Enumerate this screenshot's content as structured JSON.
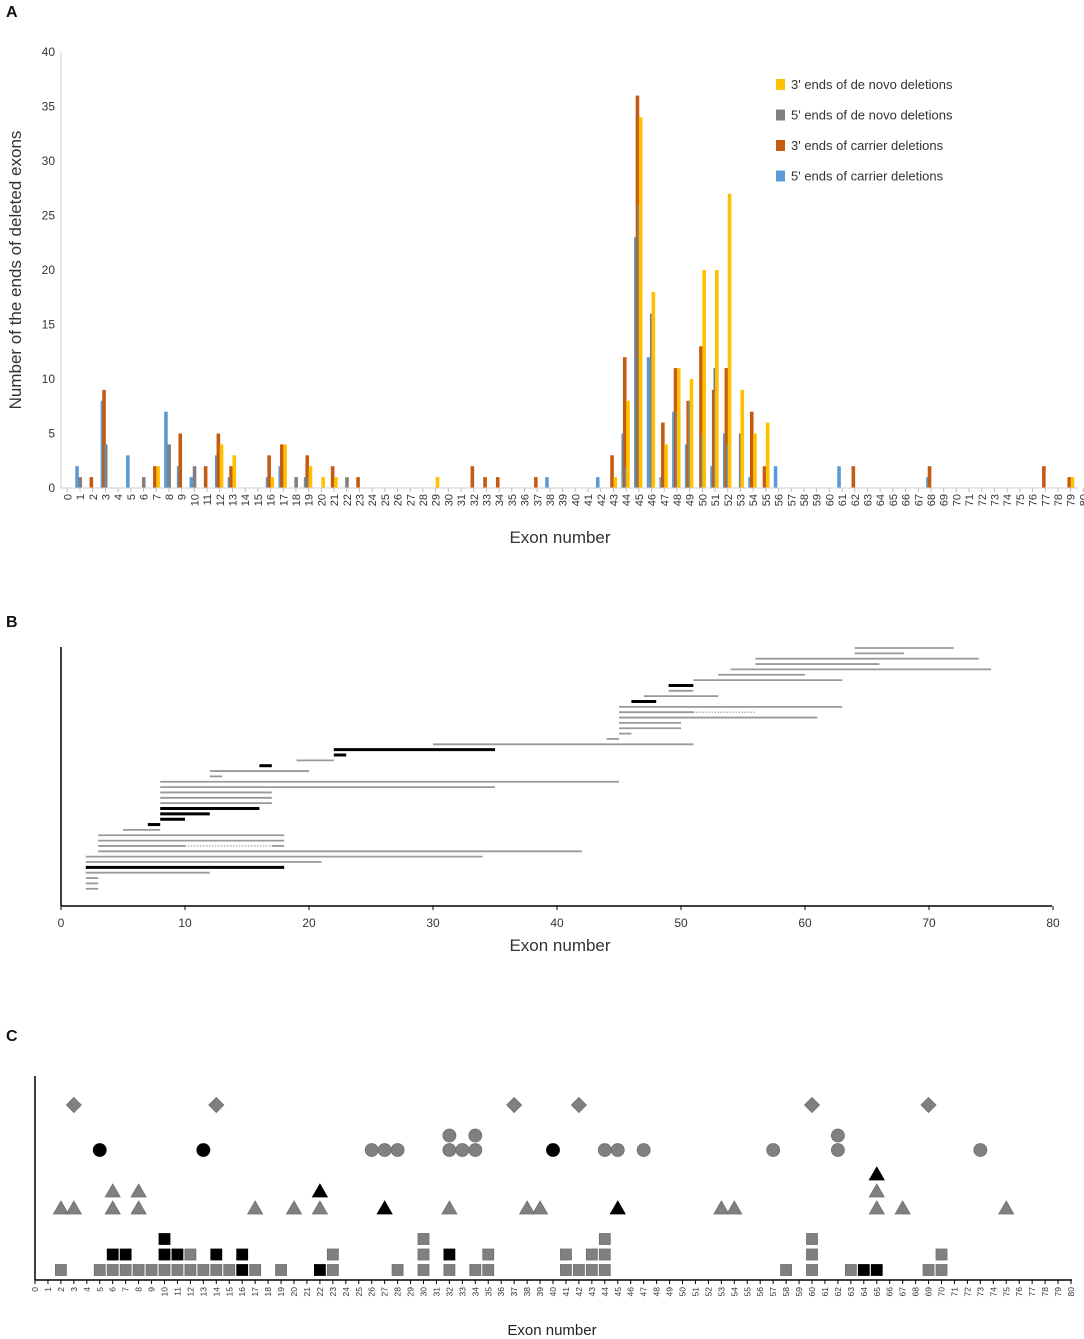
{
  "panel_labels": {
    "a": "A",
    "b": "B",
    "c": "C"
  },
  "colors": {
    "de_novo_3p": "#FFC000",
    "de_novo_5p": "#808080",
    "carrier_3p": "#C55A11",
    "carrier_5p": "#5B9BD5",
    "grey_line": "#999999",
    "black": "#000000",
    "grey_marker": "#808080"
  },
  "chart_data": [
    {
      "id": "A",
      "type": "bar",
      "ylabel": "Number of the ends of deleted exons",
      "xlabel": "Exon number",
      "ylim": [
        0,
        40
      ],
      "yticks": [
        0,
        5,
        10,
        15,
        20,
        25,
        30,
        35,
        40
      ],
      "xlim": [
        0,
        80
      ],
      "legend": [
        {
          "key": "denovo3",
          "name": "3' ends of de novo deletions"
        },
        {
          "key": "denovo5",
          "name": "5' ends of de novo deletions"
        },
        {
          "key": "carrier3",
          "name": "3' ends of carrier deletions"
        },
        {
          "key": "carrier5",
          "name": "5' ends of carrier deletions"
        }
      ],
      "series": [
        {
          "key": "carrier5",
          "name": "5' ends of carrier deletions",
          "points": [
            [
              1,
              2
            ],
            [
              3,
              8
            ],
            [
              5,
              3
            ],
            [
              8,
              7
            ],
            [
              9,
              2
            ],
            [
              10,
              1
            ],
            [
              12,
              3
            ],
            [
              13,
              1
            ],
            [
              16,
              1
            ],
            [
              17,
              2
            ],
            [
              19,
              1
            ],
            [
              38,
              1
            ],
            [
              42,
              1
            ],
            [
              44,
              5
            ],
            [
              45,
              23
            ],
            [
              46,
              12
            ],
            [
              47,
              1
            ],
            [
              48,
              7
            ],
            [
              49,
              4
            ],
            [
              51,
              2
            ],
            [
              52,
              5
            ],
            [
              54,
              1
            ],
            [
              56,
              2
            ],
            [
              61,
              2
            ],
            [
              68,
              1
            ]
          ]
        },
        {
          "key": "carrier3",
          "name": "3' ends of carrier deletions",
          "points": [
            [
              2,
              1
            ],
            [
              3,
              9
            ],
            [
              7,
              2
            ],
            [
              9,
              5
            ],
            [
              11,
              2
            ],
            [
              12,
              5
            ],
            [
              13,
              2
            ],
            [
              16,
              3
            ],
            [
              17,
              4
            ],
            [
              19,
              3
            ],
            [
              21,
              2
            ],
            [
              23,
              1
            ],
            [
              32,
              2
            ],
            [
              33,
              1
            ],
            [
              34,
              1
            ],
            [
              37,
              1
            ],
            [
              43,
              3
            ],
            [
              44,
              12
            ],
            [
              45,
              36
            ],
            [
              47,
              6
            ],
            [
              48,
              11
            ],
            [
              49,
              8
            ],
            [
              50,
              13
            ],
            [
              51,
              9
            ],
            [
              52,
              11
            ],
            [
              54,
              7
            ],
            [
              55,
              2
            ],
            [
              62,
              2
            ],
            [
              68,
              2
            ],
            [
              77,
              2
            ],
            [
              79,
              1
            ]
          ]
        },
        {
          "key": "denovo5",
          "name": "5' ends of de novo deletions",
          "points": [
            [
              1,
              1
            ],
            [
              3,
              4
            ],
            [
              6,
              1
            ],
            [
              8,
              4
            ],
            [
              10,
              2
            ],
            [
              18,
              1
            ],
            [
              19,
              1
            ],
            [
              22,
              1
            ],
            [
              44,
              2
            ],
            [
              45,
              26
            ],
            [
              46,
              16
            ],
            [
              48,
              7
            ],
            [
              49,
              8
            ],
            [
              50,
              5
            ],
            [
              51,
              11
            ],
            [
              52,
              4
            ],
            [
              53,
              5
            ]
          ]
        },
        {
          "key": "denovo3",
          "name": "3' ends of de novo deletions",
          "points": [
            [
              7,
              2
            ],
            [
              12,
              4
            ],
            [
              13,
              3
            ],
            [
              16,
              1
            ],
            [
              17,
              4
            ],
            [
              19,
              2
            ],
            [
              20,
              1
            ],
            [
              21,
              1
            ],
            [
              29,
              1
            ],
            [
              43,
              1
            ],
            [
              44,
              8
            ],
            [
              45,
              34
            ],
            [
              46,
              18
            ],
            [
              47,
              4
            ],
            [
              48,
              11
            ],
            [
              49,
              10
            ],
            [
              50,
              20
            ],
            [
              51,
              20
            ],
            [
              52,
              27
            ],
            [
              53,
              9
            ],
            [
              54,
              5
            ],
            [
              55,
              6
            ],
            [
              79,
              1
            ]
          ]
        }
      ]
    },
    {
      "id": "B",
      "type": "range",
      "xlabel": "Exon number",
      "xlim": [
        0,
        80
      ],
      "xticks": [
        0,
        10,
        20,
        30,
        40,
        50,
        60,
        70,
        80
      ],
      "segments": [
        {
          "s": 64,
          "e": 72,
          "c": "g"
        },
        {
          "s": 64,
          "e": 68,
          "c": "g"
        },
        {
          "s": 56,
          "e": 74,
          "c": "g"
        },
        {
          "s": 56,
          "e": 66,
          "c": "g"
        },
        {
          "s": 54,
          "e": 75,
          "c": "g"
        },
        {
          "s": 53,
          "e": 60,
          "c": "g"
        },
        {
          "s": 51,
          "e": 63,
          "c": "g"
        },
        {
          "s": 49,
          "e": 51,
          "c": "k"
        },
        {
          "s": 49,
          "e": 51,
          "c": "g"
        },
        {
          "s": 47,
          "e": 53,
          "c": "g"
        },
        {
          "s": 46,
          "e": 48,
          "c": "k"
        },
        {
          "s": 45,
          "e": 63,
          "c": "g"
        },
        {
          "s": 45,
          "e": 56,
          "c": "g",
          "d": [
            51,
            56
          ]
        },
        {
          "s": 45,
          "e": 61,
          "c": "g"
        },
        {
          "s": 45,
          "e": 50,
          "c": "g"
        },
        {
          "s": 45,
          "e": 50,
          "c": "g"
        },
        {
          "s": 45,
          "e": 46,
          "c": "g"
        },
        {
          "s": 44,
          "e": 45,
          "c": "g"
        },
        {
          "s": 30,
          "e": 51,
          "c": "g"
        },
        {
          "s": 22,
          "e": 35,
          "c": "k"
        },
        {
          "s": 22,
          "e": 23,
          "c": "k"
        },
        {
          "s": 19,
          "e": 22,
          "c": "g"
        },
        {
          "s": 16,
          "e": 17,
          "c": "k"
        },
        {
          "s": 12,
          "e": 20,
          "c": "g"
        },
        {
          "s": 12,
          "e": 13,
          "c": "g"
        },
        {
          "s": 8,
          "e": 45,
          "c": "g"
        },
        {
          "s": 8,
          "e": 35,
          "c": "g"
        },
        {
          "s": 8,
          "e": 17,
          "c": "g"
        },
        {
          "s": 8,
          "e": 17,
          "c": "g"
        },
        {
          "s": 8,
          "e": 17,
          "c": "g"
        },
        {
          "s": 8,
          "e": 16,
          "c": "k"
        },
        {
          "s": 8,
          "e": 12,
          "c": "k"
        },
        {
          "s": 8,
          "e": 10,
          "c": "k"
        },
        {
          "s": 7,
          "e": 8,
          "c": "k"
        },
        {
          "s": 5,
          "e": 8,
          "c": "g"
        },
        {
          "s": 3,
          "e": 18,
          "c": "g"
        },
        {
          "s": 3,
          "e": 18,
          "c": "g"
        },
        {
          "s": 3,
          "e": 18,
          "c": "g",
          "d": [
            10,
            17
          ]
        },
        {
          "s": 3,
          "e": 42,
          "c": "g"
        },
        {
          "s": 2,
          "e": 34,
          "c": "g"
        },
        {
          "s": 2,
          "e": 21,
          "c": "g"
        },
        {
          "s": 2,
          "e": 18,
          "c": "k"
        },
        {
          "s": 2,
          "e": 12,
          "c": "g"
        },
        {
          "s": 2,
          "e": 3,
          "c": "g"
        },
        {
          "s": 2,
          "e": 3,
          "c": "g"
        },
        {
          "s": 2,
          "e": 3,
          "c": "g"
        }
      ]
    },
    {
      "id": "C",
      "type": "scatter",
      "xlabel": "Exon number",
      "xlim": [
        0,
        80
      ],
      "marker_groups": [
        {
          "shape": "diamond",
          "color": "grey",
          "points": [
            [
              3,
              1
            ],
            [
              14,
              1
            ],
            [
              37,
              1
            ],
            [
              42,
              1
            ],
            [
              60,
              1
            ],
            [
              69,
              1
            ]
          ]
        },
        {
          "shape": "circle",
          "color": "black",
          "points": [
            [
              5,
              1
            ],
            [
              13,
              1
            ],
            [
              40,
              1
            ]
          ]
        },
        {
          "shape": "circle",
          "color": "grey",
          "points": [
            [
              26,
              1
            ],
            [
              27,
              1
            ],
            [
              28,
              1
            ],
            [
              32,
              1
            ],
            [
              32,
              2
            ],
            [
              33,
              1
            ],
            [
              34,
              1
            ],
            [
              34,
              2
            ],
            [
              44,
              1
            ],
            [
              45,
              1
            ],
            [
              47,
              1
            ],
            [
              57,
              1
            ],
            [
              62,
              1
            ],
            [
              62,
              2
            ],
            [
              73,
              1
            ]
          ]
        },
        {
          "shape": "triangle",
          "color": "black",
          "points": [
            [
              22,
              2
            ],
            [
              27,
              1
            ],
            [
              45,
              1
            ],
            [
              65,
              3
            ]
          ]
        },
        {
          "shape": "triangle",
          "color": "grey",
          "points": [
            [
              2,
              1
            ],
            [
              3,
              1
            ],
            [
              6,
              1
            ],
            [
              6,
              2
            ],
            [
              8,
              1
            ],
            [
              8,
              2
            ],
            [
              17,
              1
            ],
            [
              20,
              1
            ],
            [
              22,
              1
            ],
            [
              32,
              1
            ],
            [
              38,
              1
            ],
            [
              39,
              1
            ],
            [
              53,
              1
            ],
            [
              54,
              1
            ],
            [
              65,
              1
            ],
            [
              65,
              2
            ],
            [
              67,
              1
            ],
            [
              75,
              1
            ]
          ]
        },
        {
          "shape": "square",
          "color": "black",
          "points": [
            [
              6,
              2
            ],
            [
              7,
              2
            ],
            [
              10,
              2
            ],
            [
              10,
              3
            ],
            [
              11,
              2
            ],
            [
              14,
              2
            ],
            [
              16,
              1
            ],
            [
              16,
              2
            ],
            [
              22,
              1
            ],
            [
              32,
              2
            ],
            [
              64,
              1
            ],
            [
              65,
              1
            ]
          ]
        },
        {
          "shape": "square",
          "color": "grey",
          "points": [
            [
              2,
              1
            ],
            [
              5,
              1
            ],
            [
              6,
              1
            ],
            [
              7,
              1
            ],
            [
              8,
              1
            ],
            [
              9,
              1
            ],
            [
              10,
              1
            ],
            [
              11,
              1
            ],
            [
              12,
              1
            ],
            [
              12,
              2
            ],
            [
              13,
              1
            ],
            [
              14,
              1
            ],
            [
              15,
              1
            ],
            [
              17,
              1
            ],
            [
              19,
              1
            ],
            [
              23,
              1
            ],
            [
              23,
              2
            ],
            [
              28,
              1
            ],
            [
              30,
              1
            ],
            [
              30,
              2
            ],
            [
              30,
              3
            ],
            [
              32,
              1
            ],
            [
              34,
              1
            ],
            [
              35,
              1
            ],
            [
              35,
              2
            ],
            [
              41,
              1
            ],
            [
              41,
              2
            ],
            [
              42,
              1
            ],
            [
              43,
              1
            ],
            [
              43,
              2
            ],
            [
              44,
              1
            ],
            [
              44,
              2
            ],
            [
              44,
              3
            ],
            [
              58,
              1
            ],
            [
              60,
              1
            ],
            [
              60,
              2
            ],
            [
              60,
              3
            ],
            [
              63,
              1
            ],
            [
              69,
              1
            ],
            [
              70,
              1
            ],
            [
              70,
              2
            ]
          ]
        }
      ]
    }
  ]
}
